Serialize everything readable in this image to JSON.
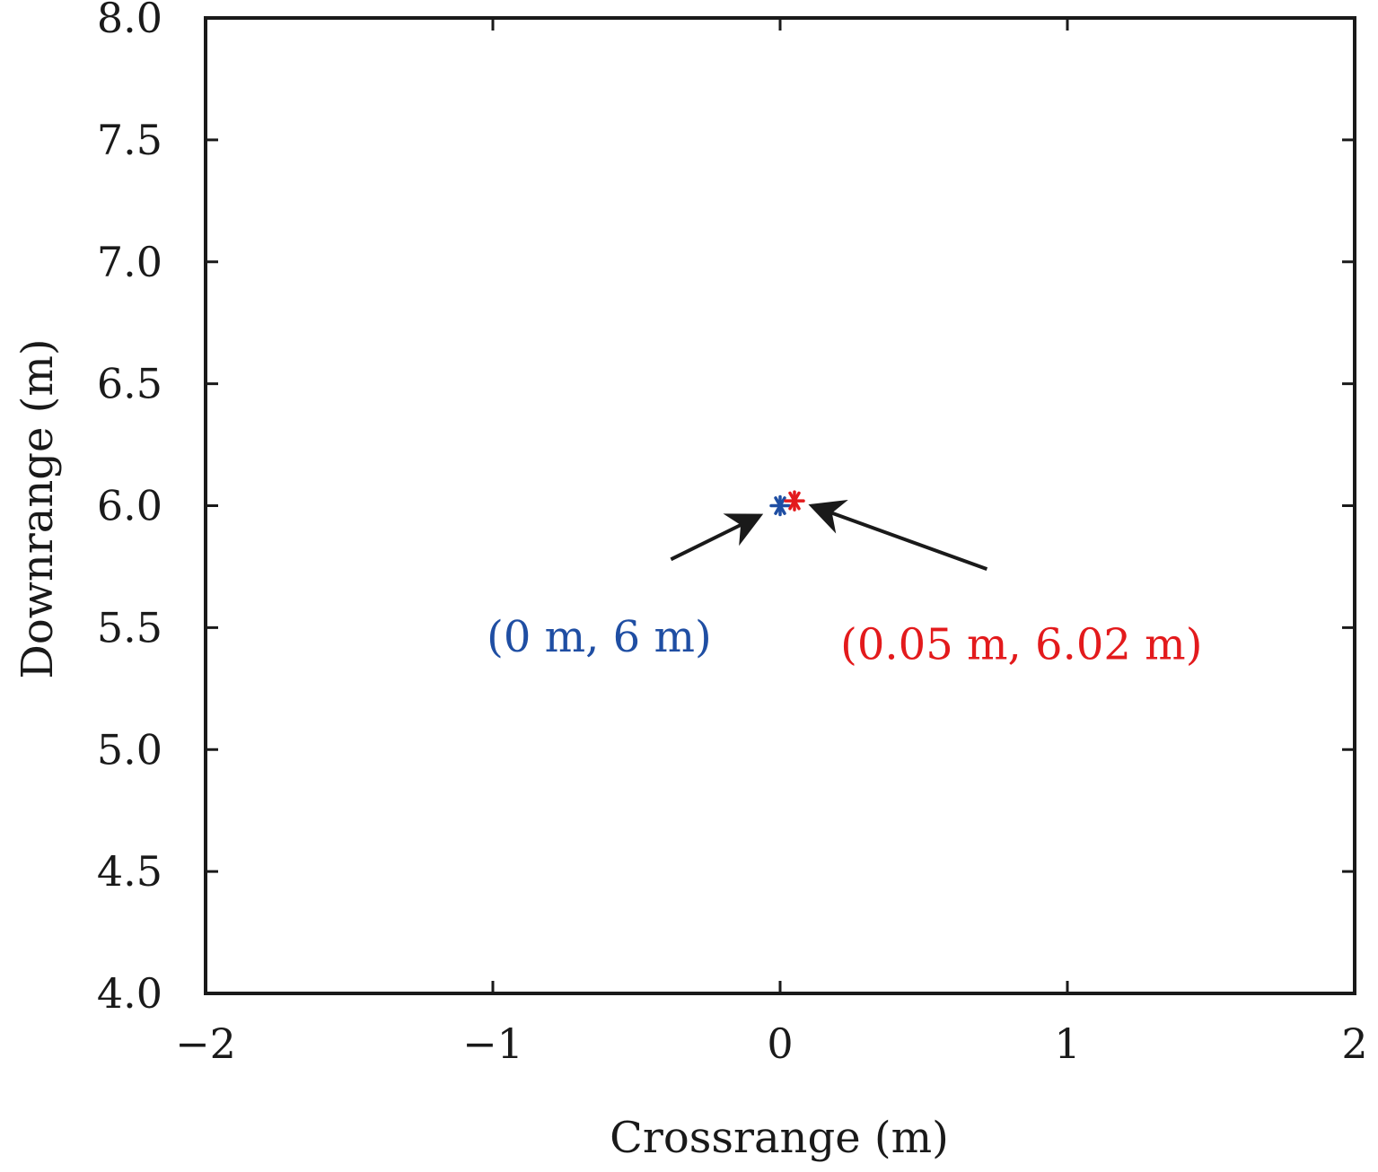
{
  "chart_data": {
    "type": "scatter",
    "title": "",
    "xlabel": "Crossrange (m)",
    "ylabel": "Downrange (m)",
    "xlim": [
      -2,
      2
    ],
    "ylim": [
      4.0,
      8.0
    ],
    "xticks": [
      -2,
      -1,
      0,
      1,
      2
    ],
    "xtick_labels": [
      "−2",
      "−1",
      "0",
      "1",
      "2"
    ],
    "yticks": [
      4.0,
      4.5,
      5.0,
      5.5,
      6.0,
      6.5,
      7.0,
      7.5,
      8.0
    ],
    "ytick_labels": [
      "4.0",
      "4.5",
      "5.0",
      "5.5",
      "6.0",
      "6.5",
      "7.0",
      "7.5",
      "8.0"
    ],
    "grid": false,
    "series": [
      {
        "x": [
          0
        ],
        "y": [
          6.0
        ],
        "marker": "asterisk",
        "color": "#1f4ea3"
      },
      {
        "x": [
          0.05
        ],
        "y": [
          6.02
        ],
        "marker": "asterisk",
        "color": "#e31a1c"
      }
    ],
    "annotations": [
      {
        "text": "(0 m, 6 m)",
        "color": "#1f4ea3",
        "text_x": -0.63,
        "text_y": 5.46,
        "arrow_from": [
          -0.38,
          5.78
        ],
        "arrow_to": [
          -0.07,
          5.96
        ]
      },
      {
        "text": "(0.05 m, 6.02 m)",
        "color": "#e31a1c",
        "text_x": 0.84,
        "text_y": 5.43,
        "arrow_from": [
          0.72,
          5.74
        ],
        "arrow_to": [
          0.11,
          6.0
        ]
      }
    ]
  }
}
